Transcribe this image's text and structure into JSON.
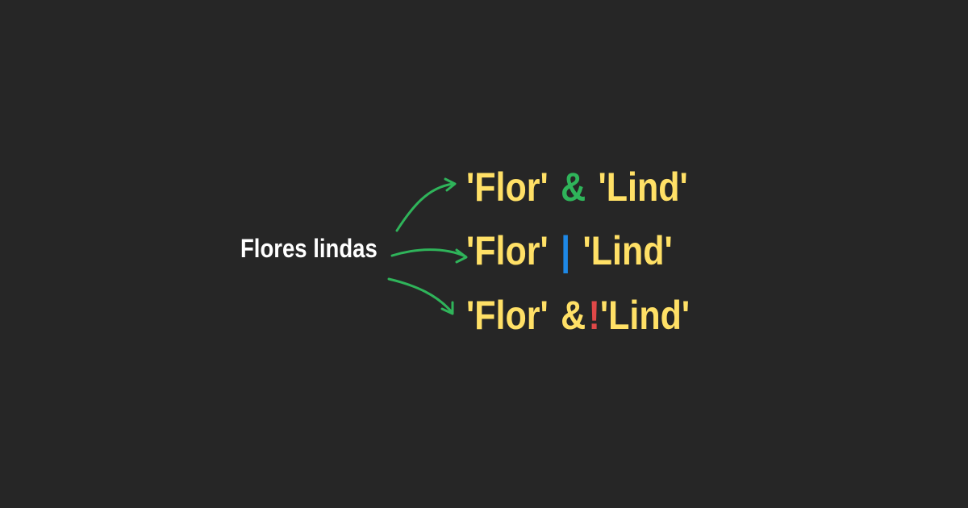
{
  "source": {
    "text": "Flores lindas"
  },
  "queries": [
    {
      "left": "'Flor'",
      "operator": "&",
      "operator_color": "#2fb45a",
      "right": "'Lind'"
    },
    {
      "left": "'Flor'",
      "operator": "|",
      "operator_color": "#1e88e5",
      "right": "'Lind'"
    },
    {
      "left": "'Flor'",
      "operator": "&",
      "operator_color": "#ffe066",
      "negation": "!",
      "negation_color": "#e04848",
      "right": "'Lind'"
    }
  ],
  "colors": {
    "background": "#262626",
    "term": "#ffe066",
    "label": "#ffffff",
    "arrow": "#2fb45a"
  }
}
